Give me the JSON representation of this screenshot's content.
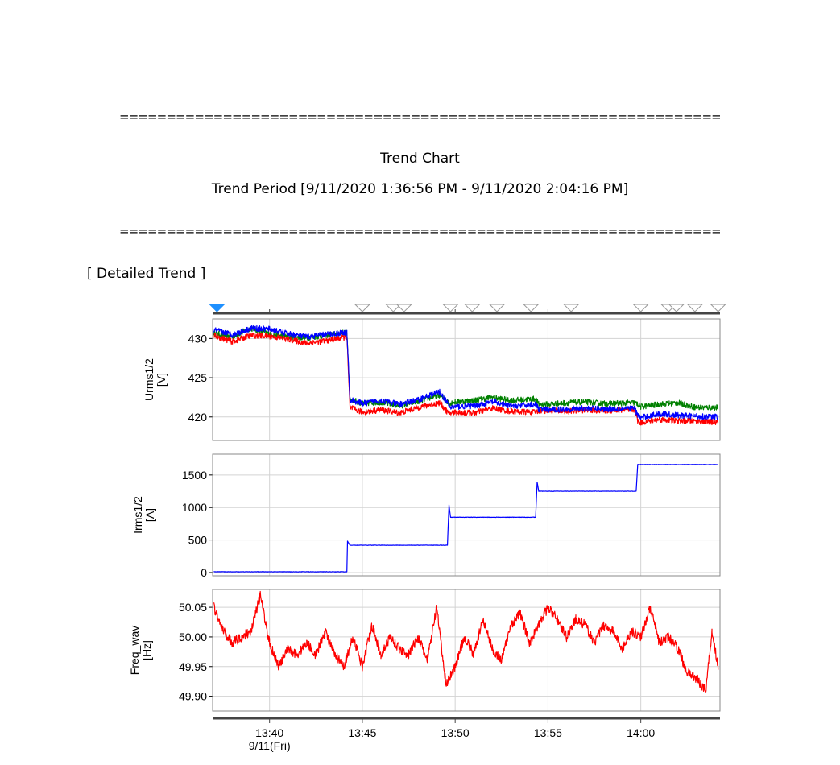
{
  "report": {
    "separator": "=========================================================================",
    "title": "Trend Chart",
    "period": "Trend Period  [9/11/2020 1:36:56 PM - 9/11/2020 2:04:16 PM]",
    "section": "[ Detailed Trend ]"
  },
  "chart_data": {
    "type": "line",
    "colors": {
      "phase1": "#ff0000",
      "phase2": "#008000",
      "phase3": "#0000ff",
      "grid": "#d3d3d3",
      "event_marker": "#1e90ff"
    },
    "x_axis": {
      "range": [
        "13:36:56",
        "14:04:16"
      ],
      "ticks": [
        {
          "time": "13:40",
          "label": "13:40",
          "sublabel": "9/11(Fri)"
        },
        {
          "time": "13:45",
          "label": "13:45"
        },
        {
          "time": "13:50",
          "label": "13:50"
        },
        {
          "time": "13:55",
          "label": "13:55"
        },
        {
          "time": "14:00",
          "label": "14:00"
        }
      ]
    },
    "event_markers": [
      {
        "time": "13:37:10",
        "active": true
      },
      {
        "time": "13:45:00"
      },
      {
        "time": "13:46:40"
      },
      {
        "time": "13:47:15"
      },
      {
        "time": "13:49:45"
      },
      {
        "time": "13:50:55"
      },
      {
        "time": "13:52:15"
      },
      {
        "time": "13:54:05"
      },
      {
        "time": "13:56:15"
      },
      {
        "time": "14:00:00"
      },
      {
        "time": "14:01:30"
      },
      {
        "time": "14:01:55"
      },
      {
        "time": "14:02:55"
      },
      {
        "time": "14:04:10"
      }
    ],
    "panels": [
      {
        "id": "urms",
        "ylabel": "Urms1/2",
        "unit": "[V]",
        "ylim": [
          417,
          432.5
        ],
        "yticks": [
          430,
          425,
          420
        ],
        "tick_labels": [
          "430",
          "425",
          "420"
        ],
        "series_profiles": [
          {
            "color": "#008000",
            "points": [
              [
                "13:37:00",
                430.7
              ],
              [
                "13:38:00",
                430.2
              ],
              [
                "13:39:00",
                431.3
              ],
              [
                "13:40:00",
                430.6
              ],
              [
                "13:41:00",
                430.2
              ],
              [
                "13:42:00",
                430.1
              ],
              [
                "13:43:00",
                430.4
              ],
              [
                "13:44:10",
                430.8
              ],
              [
                "13:44:20",
                422.3
              ],
              [
                "13:45:00",
                421.7
              ],
              [
                "13:46:00",
                421.9
              ],
              [
                "13:47:00",
                421.4
              ],
              [
                "13:48:00",
                422.0
              ],
              [
                "13:49:10",
                422.8
              ],
              [
                "13:49:40",
                421.8
              ],
              [
                "13:49:45",
                421.8
              ],
              [
                "13:50:00",
                421.9
              ],
              [
                "13:51:00",
                422.1
              ],
              [
                "13:52:00",
                422.5
              ],
              [
                "13:53:00",
                422.1
              ],
              [
                "13:54:20",
                422.3
              ],
              [
                "13:54:30",
                421.6
              ],
              [
                "13:55:00",
                421.6
              ],
              [
                "13:56:00",
                421.8
              ],
              [
                "13:57:00",
                421.9
              ],
              [
                "13:58:00",
                421.7
              ],
              [
                "13:59:40",
                421.8
              ],
              [
                "13:59:50",
                421.6
              ],
              [
                "14:00:00",
                421.3
              ],
              [
                "14:01:00",
                421.6
              ],
              [
                "14:02:00",
                421.8
              ],
              [
                "14:03:00",
                421.2
              ],
              [
                "14:04:10",
                421.2
              ]
            ]
          },
          {
            "color": "#ff0000",
            "points": [
              [
                "13:37:00",
                430.4
              ],
              [
                "13:38:00",
                429.6
              ],
              [
                "13:39:00",
                430.4
              ],
              [
                "13:40:00",
                430.3
              ],
              [
                "13:41:00",
                429.9
              ],
              [
                "13:42:00",
                429.4
              ],
              [
                "13:43:00",
                429.7
              ],
              [
                "13:44:10",
                430.2
              ],
              [
                "13:44:20",
                421.2
              ],
              [
                "13:45:00",
                420.6
              ],
              [
                "13:46:00",
                420.9
              ],
              [
                "13:47:00",
                420.5
              ],
              [
                "13:48:00",
                421.2
              ],
              [
                "13:49:10",
                421.8
              ],
              [
                "13:49:40",
                420.4
              ],
              [
                "13:49:45",
                420.5
              ],
              [
                "13:50:00",
                420.6
              ],
              [
                "13:51:00",
                420.5
              ],
              [
                "13:52:00",
                421.1
              ],
              [
                "13:53:00",
                420.7
              ],
              [
                "13:54:20",
                420.6
              ],
              [
                "13:54:30",
                420.8
              ],
              [
                "13:55:00",
                420.8
              ],
              [
                "13:56:00",
                420.7
              ],
              [
                "13:57:00",
                420.9
              ],
              [
                "13:58:00",
                420.8
              ],
              [
                "13:59:40",
                420.9
              ],
              [
                "13:59:50",
                419.5
              ],
              [
                "14:00:00",
                419.3
              ],
              [
                "14:01:00",
                419.7
              ],
              [
                "14:02:00",
                419.5
              ],
              [
                "14:03:00",
                419.5
              ],
              [
                "14:04:10",
                419.3
              ]
            ]
          },
          {
            "color": "#0000ff",
            "points": [
              [
                "13:37:00",
                431.1
              ],
              [
                "13:38:00",
                430.5
              ],
              [
                "13:39:00",
                431.3
              ],
              [
                "13:40:00",
                431.2
              ],
              [
                "13:41:00",
                430.6
              ],
              [
                "13:42:00",
                430.2
              ],
              [
                "13:43:00",
                430.5
              ],
              [
                "13:44:10",
                430.8
              ],
              [
                "13:44:20",
                422.2
              ],
              [
                "13:45:00",
                421.7
              ],
              [
                "13:46:00",
                422.1
              ],
              [
                "13:47:00",
                421.6
              ],
              [
                "13:48:00",
                422.2
              ],
              [
                "13:49:10",
                423.2
              ],
              [
                "13:49:40",
                421.5
              ],
              [
                "13:49:45",
                421.2
              ],
              [
                "13:50:00",
                421.3
              ],
              [
                "13:51:00",
                421.4
              ],
              [
                "13:52:00",
                421.9
              ],
              [
                "13:53:00",
                421.4
              ],
              [
                "13:54:20",
                421.6
              ],
              [
                "13:54:30",
                421.0
              ],
              [
                "13:55:00",
                420.9
              ],
              [
                "13:56:00",
                421.0
              ],
              [
                "13:57:00",
                421.1
              ],
              [
                "13:58:00",
                421.0
              ],
              [
                "13:59:40",
                421.1
              ],
              [
                "13:59:50",
                420.2
              ],
              [
                "14:00:00",
                419.9
              ],
              [
                "14:01:00",
                420.4
              ],
              [
                "14:02:00",
                420.2
              ],
              [
                "14:03:00",
                420.1
              ],
              [
                "14:04:10",
                420.0
              ]
            ]
          }
        ]
      },
      {
        "id": "irms",
        "ylabel": "Irms1/2",
        "unit": "[A]",
        "ylim": [
          -50,
          1820
        ],
        "yticks": [
          1500,
          1000,
          500,
          0
        ],
        "tick_labels": [
          "1500",
          "1000",
          "500",
          "0"
        ],
        "series_profiles": [
          {
            "color": "#0000ff",
            "points": [
              [
                "13:37:00",
                12
              ],
              [
                "13:44:10",
                12
              ],
              [
                "13:44:12",
                480
              ],
              [
                "13:44:20",
                420
              ],
              [
                "13:49:35",
                420
              ],
              [
                "13:49:40",
                1040
              ],
              [
                "13:49:45",
                850
              ],
              [
                "13:54:20",
                850
              ],
              [
                "13:54:25",
                1390
              ],
              [
                "13:54:30",
                1250
              ],
              [
                "13:59:45",
                1250
              ],
              [
                "13:59:50",
                1660
              ],
              [
                "14:04:10",
                1660
              ]
            ]
          }
        ]
      },
      {
        "id": "freq",
        "ylabel": "Freq_wav",
        "unit": "[Hz]",
        "ylim": [
          49.875,
          50.08
        ],
        "yticks": [
          50.05,
          50.0,
          49.95,
          49.9
        ],
        "tick_labels": [
          "50.05",
          "50.00",
          "49.95",
          "49.90"
        ],
        "series_profiles": [
          {
            "color": "#ff0000",
            "points": [
              [
                "13:37:00",
                50.05
              ],
              [
                "13:37:30",
                50.01
              ],
              [
                "13:38:00",
                49.99
              ],
              [
                "13:38:30",
                50.0
              ],
              [
                "13:39:00",
                50.01
              ],
              [
                "13:39:30",
                50.07
              ],
              [
                "13:40:00",
                49.99
              ],
              [
                "13:40:30",
                49.95
              ],
              [
                "13:41:00",
                49.98
              ],
              [
                "13:41:30",
                49.97
              ],
              [
                "13:42:00",
                49.99
              ],
              [
                "13:42:30",
                49.97
              ],
              [
                "13:43:00",
                50.01
              ],
              [
                "13:43:30",
                49.97
              ],
              [
                "13:44:00",
                49.95
              ],
              [
                "13:44:30",
                50.0
              ],
              [
                "13:45:00",
                49.95
              ],
              [
                "13:45:30",
                50.02
              ],
              [
                "13:46:00",
                49.97
              ],
              [
                "13:46:30",
                50.0
              ],
              [
                "13:47:00",
                49.98
              ],
              [
                "13:47:30",
                49.97
              ],
              [
                "13:48:00",
                50.0
              ],
              [
                "13:48:30",
                49.96
              ],
              [
                "13:49:00",
                50.05
              ],
              [
                "13:49:30",
                49.92
              ],
              [
                "13:50:00",
                49.95
              ],
              [
                "13:50:30",
                50.0
              ],
              [
                "13:51:00",
                49.97
              ],
              [
                "13:51:30",
                50.03
              ],
              [
                "13:52:00",
                49.98
              ],
              [
                "13:52:30",
                49.96
              ],
              [
                "13:53:00",
                50.02
              ],
              [
                "13:53:30",
                50.04
              ],
              [
                "13:54:00",
                49.99
              ],
              [
                "13:54:30",
                50.02
              ],
              [
                "13:55:00",
                50.05
              ],
              [
                "13:55:30",
                50.03
              ],
              [
                "13:56:00",
                50.0
              ],
              [
                "13:56:30",
                50.03
              ],
              [
                "13:57:00",
                50.02
              ],
              [
                "13:57:30",
                49.99
              ],
              [
                "13:58:00",
                50.02
              ],
              [
                "13:58:30",
                50.01
              ],
              [
                "13:59:00",
                49.98
              ],
              [
                "13:59:30",
                50.01
              ],
              [
                "14:00:00",
                50.0
              ],
              [
                "14:00:30",
                50.05
              ],
              [
                "14:01:00",
                49.99
              ],
              [
                "14:01:30",
                50.0
              ],
              [
                "14:02:00",
                49.98
              ],
              [
                "14:02:30",
                49.94
              ],
              [
                "14:03:00",
                49.93
              ],
              [
                "14:03:30",
                49.91
              ],
              [
                "14:03:50",
                50.01
              ],
              [
                "14:04:10",
                49.95
              ]
            ]
          }
        ]
      }
    ]
  }
}
